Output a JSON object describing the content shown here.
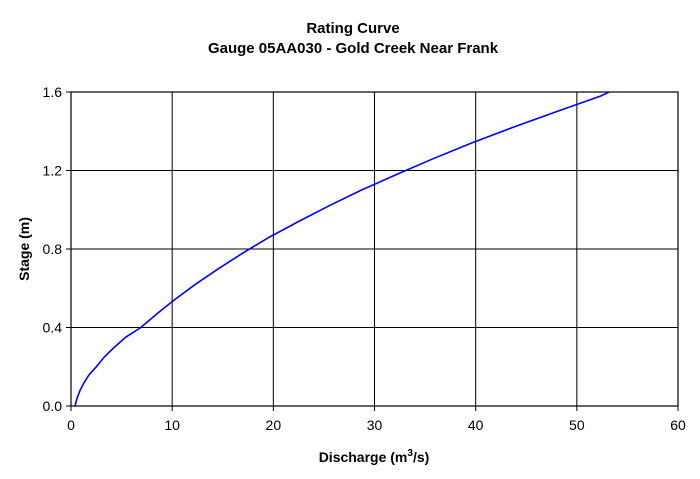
{
  "chart_data": {
    "type": "line",
    "title": "Rating Curve",
    "subtitle": "Gauge 05AA030 - Gold Creek Near Frank",
    "xlabel": "Discharge (m",
    "xlabel_sup": "3",
    "xlabel_tail": "/s)",
    "ylabel": "Stage (m)",
    "xlim": [
      0,
      60
    ],
    "ylim": [
      0,
      1.6
    ],
    "xticks": [
      0,
      10,
      20,
      30,
      40,
      50,
      60
    ],
    "yticks": [
      0.0,
      0.4,
      0.8,
      1.2,
      1.6
    ],
    "ytick_labels": [
      "0.0",
      "0.4",
      "0.8",
      "1.2",
      "1.6"
    ],
    "grid": true,
    "series": [
      {
        "color": "#0000ff",
        "x": [
          0.4,
          0.6,
          0.9,
          1.3,
          1.8,
          2.5,
          3.3,
          4.3,
          5.4,
          6.9,
          8.5,
          10.2,
          12.3,
          14.6,
          17.0,
          19.6,
          22.5,
          25.5,
          28.7,
          32.2,
          35.8,
          39.6,
          43.7,
          48.0,
          52.4,
          53.2
        ],
        "y": [
          0.0,
          0.04,
          0.08,
          0.12,
          0.16,
          0.2,
          0.25,
          0.3,
          0.35,
          0.4,
          0.47,
          0.54,
          0.62,
          0.7,
          0.78,
          0.86,
          0.94,
          1.02,
          1.1,
          1.18,
          1.26,
          1.34,
          1.42,
          1.5,
          1.58,
          1.6
        ]
      }
    ]
  }
}
